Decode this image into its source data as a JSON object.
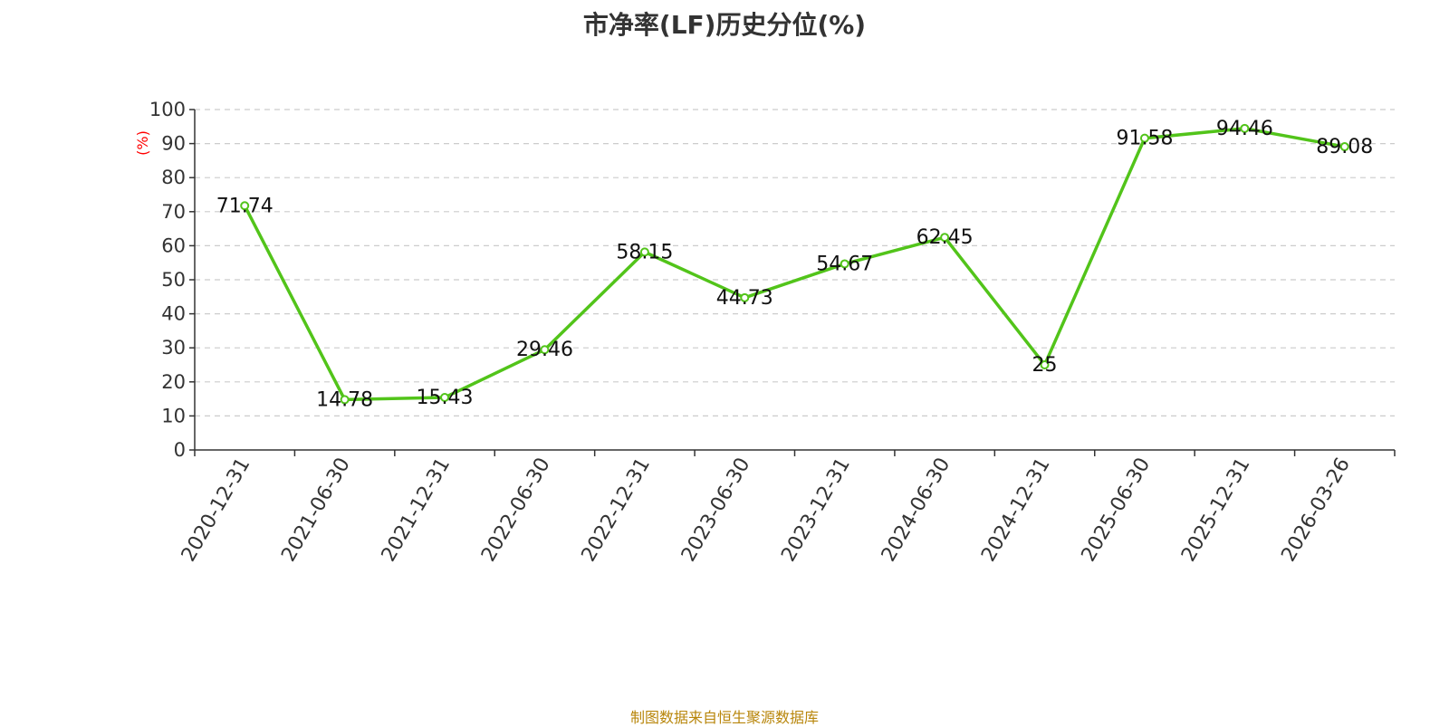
{
  "chart_data": {
    "type": "line",
    "title": "市净率(LF)历史分位(%)",
    "ylabel": "(%)",
    "xlabel": "",
    "categories": [
      "2020-12-31",
      "2021-06-30",
      "2021-12-31",
      "2022-06-30",
      "2022-12-31",
      "2023-06-30",
      "2023-12-31",
      "2024-06-30",
      "2024-12-31",
      "2025-06-30",
      "2025-12-31",
      "2026-03-26"
    ],
    "series": [
      {
        "values": [
          71.74,
          14.78,
          15.43,
          29.46,
          58.15,
          44.73,
          54.67,
          62.45,
          25,
          91.58,
          94.46,
          89.08
        ],
        "labels": [
          "71.74",
          "14.78",
          "15.43",
          "29.46",
          "58.15",
          "44.73",
          "54.67",
          "62.45",
          "25",
          "91.58",
          "94.46",
          "89.08"
        ]
      }
    ],
    "ylim": [
      0,
      100
    ],
    "yticks": [
      0,
      10,
      20,
      30,
      40,
      50,
      60,
      70,
      80,
      90,
      100
    ],
    "grid": true,
    "colors": {
      "line": "#52c41a",
      "ylabel": "#ff0000",
      "source": "#b8860b",
      "grid": "#cccccc",
      "axis": "#333333"
    }
  },
  "footer": {
    "source": "制图数据来自恒生聚源数据库"
  }
}
